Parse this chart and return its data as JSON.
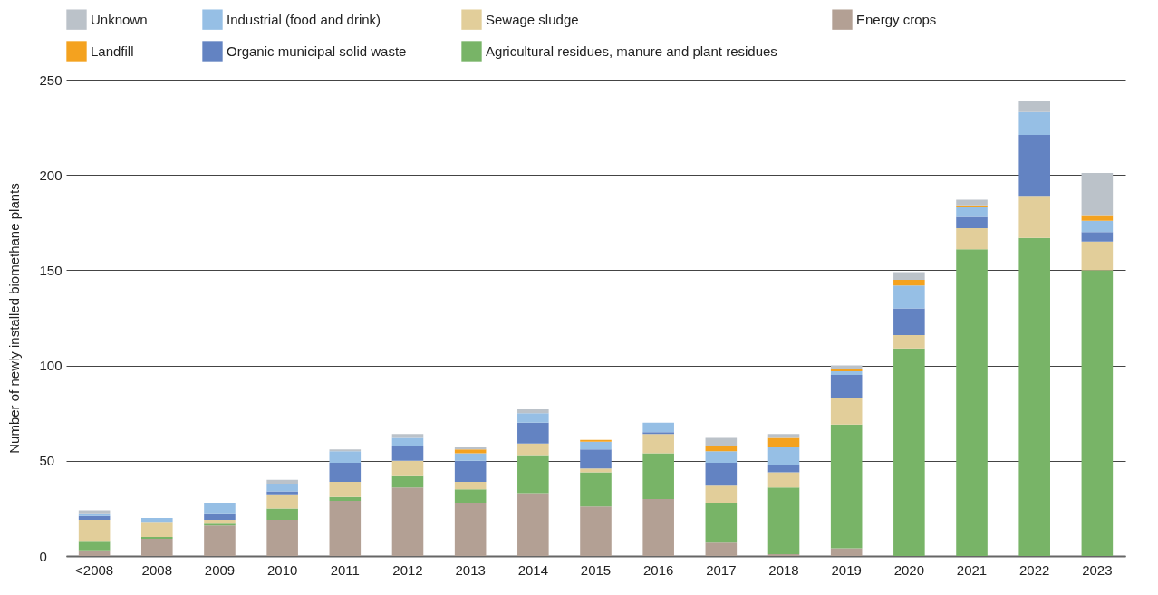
{
  "chart_data": {
    "type": "bar",
    "stacked": true,
    "ylabel": "Number of newly installed biomethane plants",
    "categories": [
      "<2008",
      "2008",
      "2009",
      "2010",
      "2011",
      "2012",
      "2013",
      "2014",
      "2015",
      "2016",
      "2017",
      "2018",
      "2019",
      "2020",
      "2021",
      "2022",
      "2023"
    ],
    "series": [
      {
        "name": "Energy crops",
        "color": "#b3a094",
        "values": [
          3,
          9,
          16,
          19,
          29,
          36,
          28,
          33,
          26,
          30,
          7,
          1,
          4,
          0,
          0,
          0,
          0
        ]
      },
      {
        "name": "Agricultural residues, manure and plant residues",
        "color": "#78b467",
        "values": [
          5,
          1,
          1,
          6,
          2,
          6,
          7,
          20,
          18,
          24,
          21,
          35,
          65,
          109,
          161,
          167,
          150
        ]
      },
      {
        "name": "Sewage sludge",
        "color": "#e2ce9a",
        "values": [
          11,
          8,
          2,
          7,
          8,
          8,
          4,
          6,
          2,
          10,
          9,
          8,
          14,
          7,
          11,
          22,
          15
        ]
      },
      {
        "name": "Organic municipal solid waste",
        "color": "#6383c2",
        "values": [
          2,
          0,
          3,
          2,
          10,
          8,
          11,
          11,
          10,
          1,
          12,
          4,
          12,
          14,
          6,
          32,
          5
        ]
      },
      {
        "name": "Industrial (food and drink)",
        "color": "#96bfe5",
        "values": [
          1,
          2,
          6,
          4,
          6,
          4,
          4,
          5,
          4,
          5,
          6,
          9,
          2,
          12,
          5,
          12,
          6
        ]
      },
      {
        "name": "Landfill",
        "color": "#f4a21f",
        "values": [
          0,
          0,
          0,
          0,
          0,
          0,
          2,
          0,
          1,
          0,
          3,
          5,
          1,
          3,
          1,
          0,
          3
        ]
      },
      {
        "name": "Unknown",
        "color": "#bbc2c9",
        "values": [
          2,
          0,
          0,
          2,
          1,
          2,
          1,
          2,
          0,
          0,
          4,
          2,
          2,
          4,
          3,
          6,
          22
        ]
      }
    ],
    "ylim": [
      0,
      250
    ],
    "yticks": [
      0,
      50,
      100,
      150,
      200,
      250
    ],
    "grid": "y",
    "legend": "top"
  }
}
